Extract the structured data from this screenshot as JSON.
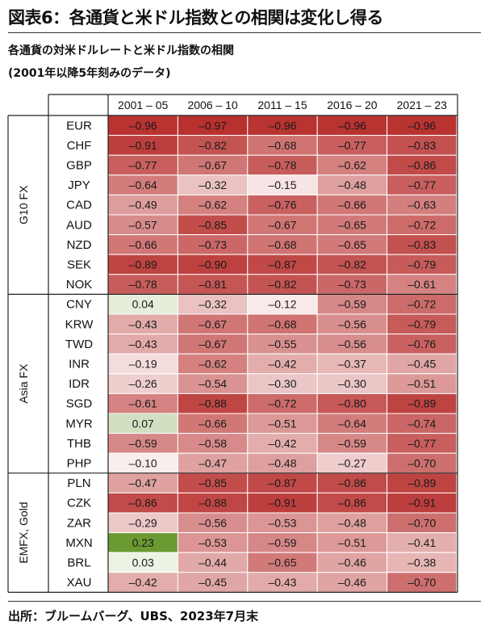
{
  "title": "図表6：各通貨と米ドル指数との相関は変化し得る",
  "subtitle": "各通貨の対米ドルレートと米ドル指数の相関",
  "subtitle2": "(2001年以降5年刻みのデータ)",
  "source": "出所：ブルームバーグ、UBS、2023年7月末",
  "chart_data": {
    "type": "heatmap",
    "columns": [
      "2001 – 05",
      "2006 – 10",
      "2011 – 15",
      "2016 – 20",
      "2021 – 23"
    ],
    "groups": [
      {
        "name": "G10 FX",
        "rows": [
          {
            "label": "EUR",
            "values": [
              -0.96,
              -0.97,
              -0.96,
              -0.96,
              -0.96
            ]
          },
          {
            "label": "CHF",
            "values": [
              -0.91,
              -0.82,
              -0.68,
              -0.77,
              -0.83
            ]
          },
          {
            "label": "GBP",
            "values": [
              -0.77,
              -0.67,
              -0.78,
              -0.62,
              -0.86
            ]
          },
          {
            "label": "JPY",
            "values": [
              -0.64,
              -0.32,
              -0.15,
              -0.48,
              -0.77
            ]
          },
          {
            "label": "CAD",
            "values": [
              -0.49,
              -0.62,
              -0.76,
              -0.66,
              -0.63
            ]
          },
          {
            "label": "AUD",
            "values": [
              -0.57,
              -0.85,
              -0.67,
              -0.65,
              -0.72
            ]
          },
          {
            "label": "NZD",
            "values": [
              -0.66,
              -0.73,
              -0.68,
              -0.65,
              -0.83
            ]
          },
          {
            "label": "SEK",
            "values": [
              -0.89,
              -0.9,
              -0.87,
              -0.82,
              -0.79
            ]
          },
          {
            "label": "NOK",
            "values": [
              -0.78,
              -0.81,
              -0.82,
              -0.73,
              -0.61
            ]
          }
        ]
      },
      {
        "name": "Asia FX",
        "rows": [
          {
            "label": "CNY",
            "values": [
              0.04,
              -0.32,
              -0.12,
              -0.59,
              -0.72
            ]
          },
          {
            "label": "KRW",
            "values": [
              -0.43,
              -0.67,
              -0.68,
              -0.56,
              -0.79
            ]
          },
          {
            "label": "TWD",
            "values": [
              -0.43,
              -0.67,
              -0.55,
              -0.56,
              -0.76
            ]
          },
          {
            "label": "INR",
            "values": [
              -0.19,
              -0.62,
              -0.42,
              -0.37,
              -0.45
            ]
          },
          {
            "label": "IDR",
            "values": [
              -0.26,
              -0.54,
              -0.3,
              -0.3,
              -0.51
            ]
          },
          {
            "label": "SGD",
            "values": [
              -0.61,
              -0.88,
              -0.72,
              -0.8,
              -0.89
            ]
          },
          {
            "label": "MYR",
            "values": [
              0.07,
              -0.66,
              -0.51,
              -0.64,
              -0.74
            ]
          },
          {
            "label": "THB",
            "values": [
              -0.59,
              -0.58,
              -0.42,
              -0.59,
              -0.77
            ]
          },
          {
            "label": "PHP",
            "values": [
              -0.1,
              -0.47,
              -0.48,
              -0.27,
              -0.7
            ]
          }
        ]
      },
      {
        "name": "EMFX, Gold",
        "rows": [
          {
            "label": "PLN",
            "values": [
              -0.47,
              -0.85,
              -0.87,
              -0.86,
              -0.89
            ]
          },
          {
            "label": "CZK",
            "values": [
              -0.86,
              -0.88,
              -0.91,
              -0.86,
              -0.91
            ]
          },
          {
            "label": "ZAR",
            "values": [
              -0.29,
              -0.56,
              -0.53,
              -0.48,
              -0.7
            ]
          },
          {
            "label": "MXN",
            "values": [
              0.23,
              -0.53,
              -0.59,
              -0.51,
              -0.41
            ]
          },
          {
            "label": "BRL",
            "values": [
              0.03,
              -0.44,
              -0.65,
              -0.46,
              -0.38
            ]
          },
          {
            "label": "XAU",
            "values": [
              -0.42,
              -0.45,
              -0.43,
              -0.46,
              -0.7
            ]
          }
        ]
      }
    ],
    "colors": {
      "negative_strong": "#b8312f",
      "neutral": "#ffffff",
      "positive_strong": "#6a9a32"
    }
  }
}
